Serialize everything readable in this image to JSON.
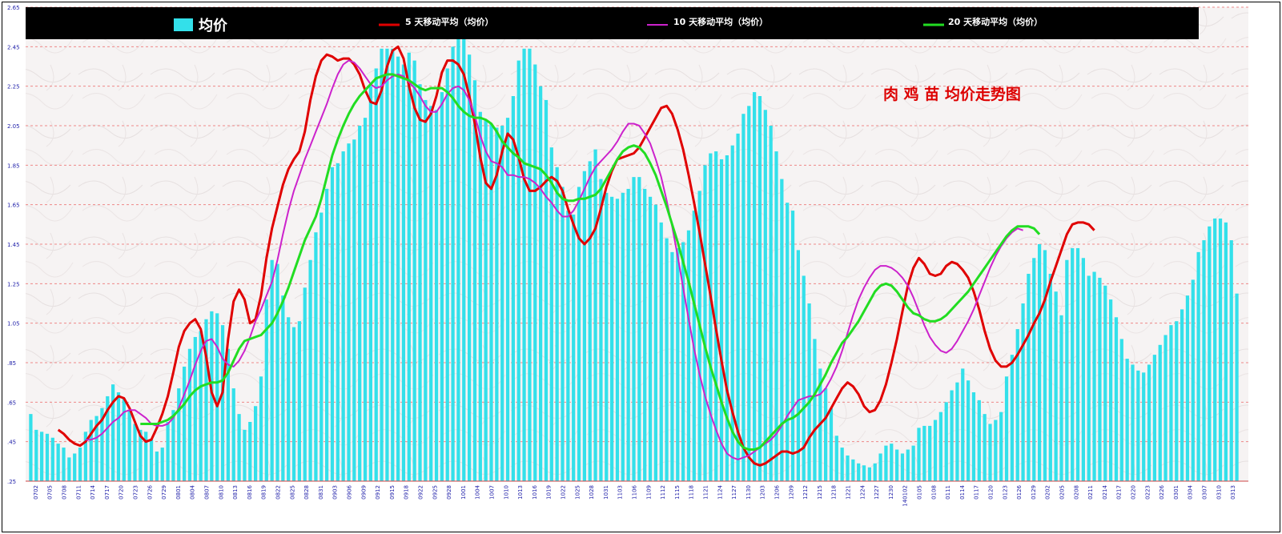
{
  "chart_data": {
    "type": "bar",
    "title": "肉 鸡 苗 均价走势图",
    "legend_placement": "top",
    "grid": true,
    "colors": {
      "bars": "#33e0ea",
      "ma5": "#e00000",
      "ma10": "#cc22cc",
      "ma20": "#22dd22",
      "legend_bg": "#000000",
      "title": "#dd0000",
      "tick_text": "#2222aa",
      "grid": "#ee8888"
    },
    "ylim": [
      0.25,
      2.65
    ],
    "y_ticks": [
      0.25,
      0.45,
      0.65,
      0.85,
      1.05,
      1.25,
      1.45,
      1.65,
      1.85,
      2.05,
      2.25,
      2.45,
      2.65
    ],
    "y_tick_labels": [
      ".25",
      ".45",
      ".65",
      ".85",
      "1.05",
      "1.25",
      "1.45",
      "1.65",
      "1.85",
      "2.05",
      "2.25",
      "2.45",
      "2.65"
    ],
    "x_tick_labels": [
      "0702",
      "0705",
      "0708",
      "0711",
      "0714",
      "0717",
      "0720",
      "0723",
      "0726",
      "0729",
      "0801",
      "0804",
      "0807",
      "0810",
      "0813",
      "0816",
      "0819",
      "0822",
      "0825",
      "0828",
      "0831",
      "0903",
      "0906",
      "0909",
      "0912",
      "0915",
      "0918",
      "0922",
      "0925",
      "0928",
      "1001",
      "1004",
      "1007",
      "1010",
      "1013",
      "1016",
      "1019",
      "1022",
      "1025",
      "1028",
      "1031",
      "1103",
      "1106",
      "1109",
      "1112",
      "1115",
      "1118",
      "1121",
      "1124",
      "1127",
      "1130",
      "1203",
      "1206",
      "1209",
      "1212",
      "1215",
      "1218",
      "1221",
      "1224",
      "1227",
      "1230",
      "140102",
      "0105",
      "0108",
      "0111",
      "0114",
      "0117",
      "0120",
      "0123",
      "0126",
      "0129",
      "0202",
      "0205",
      "0208",
      "0211",
      "0214",
      "0217",
      "0220",
      "0223",
      "0226",
      "0301",
      "0304",
      "0307",
      "0310",
      "0313"
    ],
    "series": [
      {
        "name": "均价",
        "kind": "bar",
        "values": [
          0.59,
          0.51,
          0.5,
          0.49,
          0.47,
          0.44,
          0.42,
          0.37,
          0.39,
          0.42,
          0.5,
          0.56,
          0.58,
          0.62,
          0.68,
          0.74,
          0.7,
          0.67,
          0.61,
          0.54,
          0.51,
          0.5,
          0.46,
          0.4,
          0.42,
          0.55,
          0.61,
          0.72,
          0.83,
          0.92,
          0.98,
          1.01,
          1.07,
          1.11,
          1.1,
          1.04,
          0.92,
          0.72,
          0.59,
          0.51,
          0.55,
          0.63,
          0.78,
          1.17,
          1.37,
          1.35,
          1.19,
          1.08,
          1.03,
          1.06,
          1.23,
          1.37,
          1.51,
          1.61,
          1.73,
          1.84,
          1.86,
          1.92,
          1.96,
          1.98,
          2.05,
          2.09,
          2.25,
          2.34,
          2.44,
          2.44,
          2.44,
          2.4,
          2.36,
          2.42,
          2.38,
          2.26,
          2.18,
          2.15,
          2.13,
          2.22,
          2.34,
          2.45,
          2.53,
          2.49,
          2.41,
          2.28,
          2.12,
          2.08,
          2.06,
          2.04,
          2.05,
          2.09,
          2.2,
          2.38,
          2.44,
          2.44,
          2.36,
          2.25,
          2.18,
          1.94,
          1.84,
          1.74,
          1.62,
          1.6,
          1.74,
          1.82,
          1.87,
          1.93,
          1.78,
          1.71,
          1.69,
          1.68,
          1.71,
          1.73,
          1.79,
          1.79,
          1.73,
          1.69,
          1.65,
          1.56,
          1.48,
          1.41,
          1.43,
          1.46,
          1.52,
          1.62,
          1.72,
          1.85,
          1.91,
          1.92,
          1.88,
          1.9,
          1.95,
          2.01,
          2.11,
          2.15,
          2.22,
          2.2,
          2.13,
          2.05,
          1.92,
          1.78,
          1.66,
          1.62,
          1.42,
          1.29,
          1.15,
          0.97,
          0.82,
          0.72,
          0.62,
          0.48,
          0.42,
          0.38,
          0.36,
          0.34,
          0.33,
          0.32,
          0.34,
          0.39,
          0.43,
          0.44,
          0.41,
          0.39,
          0.41,
          0.43,
          0.52,
          0.53,
          0.53,
          0.56,
          0.6,
          0.65,
          0.71,
          0.75,
          0.82,
          0.76,
          0.7,
          0.66,
          0.59,
          0.54,
          0.56,
          0.6,
          0.78,
          0.89,
          1.02,
          1.15,
          1.3,
          1.38,
          1.45,
          1.42,
          1.3,
          1.21,
          1.09,
          1.37,
          1.43,
          1.43,
          1.38,
          1.29,
          1.31,
          1.28,
          1.24,
          1.17,
          1.08,
          0.97,
          0.87,
          0.84,
          0.81,
          0.8,
          0.84,
          0.89,
          0.94,
          0.99,
          1.04,
          1.06,
          1.12,
          1.19,
          1.27,
          1.41,
          1.47,
          1.54,
          1.58,
          1.58,
          1.56,
          1.47,
          1.2
        ]
      },
      {
        "name": "5 天移动平均（均价）",
        "kind": "line",
        "x_start": 5,
        "values": [
          0.51,
          0.49,
          0.46,
          0.44,
          0.43,
          0.45,
          0.49,
          0.53,
          0.56,
          0.61,
          0.65,
          0.68,
          0.67,
          0.62,
          0.55,
          0.48,
          0.45,
          0.46,
          0.52,
          0.59,
          0.68,
          0.8,
          0.93,
          1.01,
          1.05,
          1.07,
          1.02,
          0.88,
          0.7,
          0.63,
          0.7,
          0.97,
          1.16,
          1.22,
          1.17,
          1.05,
          1.07,
          1.19,
          1.38,
          1.53,
          1.64,
          1.75,
          1.83,
          1.88,
          1.92,
          2.02,
          2.18,
          2.3,
          2.38,
          2.41,
          2.4,
          2.38,
          2.39,
          2.39,
          2.36,
          2.31,
          2.23,
          2.17,
          2.16,
          2.23,
          2.35,
          2.43,
          2.45,
          2.39,
          2.25,
          2.14,
          2.08,
          2.07,
          2.11,
          2.2,
          2.32,
          2.38,
          2.38,
          2.36,
          2.31,
          2.2,
          2.06,
          1.89,
          1.76,
          1.73,
          1.8,
          1.92,
          2.01,
          1.98,
          1.89,
          1.78,
          1.72,
          1.72,
          1.74,
          1.77,
          1.79,
          1.77,
          1.72,
          1.63,
          1.55,
          1.48,
          1.45,
          1.48,
          1.53,
          1.63,
          1.74,
          1.82,
          1.88,
          1.89,
          1.9,
          1.91,
          1.94,
          1.99,
          2.04,
          2.09,
          2.14,
          2.15,
          2.11,
          2.03,
          1.93,
          1.8,
          1.66,
          1.51,
          1.35,
          1.19,
          1.02,
          0.86,
          0.71,
          0.6,
          0.5,
          0.42,
          0.37,
          0.34,
          0.33,
          0.34,
          0.36,
          0.38,
          0.4,
          0.4,
          0.39,
          0.4,
          0.42,
          0.47,
          0.51,
          0.54,
          0.57,
          0.62,
          0.67,
          0.72,
          0.75,
          0.73,
          0.69,
          0.63,
          0.6,
          0.61,
          0.66,
          0.74,
          0.85,
          0.97,
          1.11,
          1.24,
          1.33,
          1.38,
          1.35,
          1.3,
          1.29,
          1.3,
          1.34,
          1.36,
          1.35,
          1.32,
          1.28,
          1.21,
          1.12,
          1.01,
          0.92,
          0.86,
          0.83,
          0.83,
          0.85,
          0.89,
          0.94,
          0.99,
          1.05,
          1.1,
          1.17,
          1.26,
          1.34,
          1.42,
          1.5,
          1.55,
          1.56,
          1.56,
          1.55,
          1.52
        ]
      },
      {
        "name": "10 天移动平均（均价）",
        "kind": "line",
        "x_start": 10,
        "values": [
          0.46,
          0.46,
          0.47,
          0.49,
          0.52,
          0.55,
          0.57,
          0.6,
          0.61,
          0.61,
          0.59,
          0.57,
          0.54,
          0.53,
          0.53,
          0.54,
          0.57,
          0.62,
          0.69,
          0.76,
          0.84,
          0.91,
          0.96,
          0.97,
          0.93,
          0.87,
          0.84,
          0.83,
          0.86,
          0.91,
          0.98,
          1.06,
          1.12,
          1.19,
          1.26,
          1.37,
          1.5,
          1.62,
          1.72,
          1.8,
          1.88,
          1.95,
          2.02,
          2.09,
          2.16,
          2.24,
          2.31,
          2.36,
          2.38,
          2.37,
          2.34,
          2.3,
          2.26,
          2.24,
          2.25,
          2.28,
          2.3,
          2.31,
          2.3,
          2.27,
          2.24,
          2.2,
          2.15,
          2.12,
          2.12,
          2.16,
          2.21,
          2.24,
          2.25,
          2.23,
          2.18,
          2.1,
          2.0,
          1.92,
          1.87,
          1.86,
          1.84,
          1.8,
          1.8,
          1.79,
          1.79,
          1.78,
          1.76,
          1.73,
          1.69,
          1.66,
          1.62,
          1.59,
          1.59,
          1.62,
          1.67,
          1.73,
          1.79,
          1.84,
          1.87,
          1.9,
          1.93,
          1.97,
          2.02,
          2.06,
          2.06,
          2.05,
          2.01,
          1.96,
          1.88,
          1.79,
          1.67,
          1.54,
          1.39,
          1.23,
          1.07,
          0.92,
          0.79,
          0.68,
          0.59,
          0.51,
          0.44,
          0.39,
          0.37,
          0.36,
          0.37,
          0.38,
          0.4,
          0.42,
          0.44,
          0.46,
          0.49,
          0.53,
          0.58,
          0.62,
          0.66,
          0.67,
          0.68,
          0.68,
          0.69,
          0.72,
          0.77,
          0.83,
          0.91,
          1.0,
          1.09,
          1.17,
          1.23,
          1.28,
          1.32,
          1.34,
          1.34,
          1.33,
          1.31,
          1.28,
          1.24,
          1.18,
          1.11,
          1.04,
          0.98,
          0.94,
          0.91,
          0.9,
          0.92,
          0.96,
          1.01,
          1.06,
          1.12,
          1.19,
          1.26,
          1.33,
          1.39,
          1.44,
          1.48,
          1.51,
          1.53,
          1.52
        ]
      },
      {
        "name": "20 天移动平均（均价）",
        "kind": "line",
        "x_start": 20,
        "values": [
          0.54,
          0.54,
          0.54,
          0.54,
          0.55,
          0.56,
          0.58,
          0.61,
          0.64,
          0.68,
          0.71,
          0.73,
          0.74,
          0.75,
          0.75,
          0.76,
          0.8,
          0.86,
          0.92,
          0.96,
          0.97,
          0.98,
          0.99,
          1.02,
          1.05,
          1.1,
          1.16,
          1.23,
          1.31,
          1.39,
          1.47,
          1.53,
          1.59,
          1.68,
          1.79,
          1.9,
          1.98,
          2.05,
          2.11,
          2.16,
          2.2,
          2.23,
          2.26,
          2.29,
          2.3,
          2.31,
          2.31,
          2.3,
          2.29,
          2.28,
          2.26,
          2.24,
          2.23,
          2.24,
          2.24,
          2.24,
          2.22,
          2.19,
          2.15,
          2.12,
          2.1,
          2.09,
          2.09,
          2.08,
          2.06,
          2.02,
          1.97,
          1.94,
          1.91,
          1.89,
          1.86,
          1.85,
          1.84,
          1.83,
          1.8,
          1.76,
          1.71,
          1.68,
          1.67,
          1.67,
          1.68,
          1.68,
          1.69,
          1.7,
          1.73,
          1.78,
          1.83,
          1.88,
          1.92,
          1.94,
          1.95,
          1.94,
          1.91,
          1.86,
          1.8,
          1.72,
          1.64,
          1.55,
          1.46,
          1.36,
          1.26,
          1.15,
          1.04,
          0.93,
          0.83,
          0.74,
          0.65,
          0.57,
          0.5,
          0.45,
          0.42,
          0.41,
          0.41,
          0.42,
          0.45,
          0.48,
          0.51,
          0.54,
          0.56,
          0.57,
          0.59,
          0.62,
          0.65,
          0.69,
          0.74,
          0.79,
          0.85,
          0.9,
          0.95,
          0.98,
          1.02,
          1.06,
          1.11,
          1.16,
          1.21,
          1.24,
          1.25,
          1.24,
          1.21,
          1.17,
          1.13,
          1.1,
          1.09,
          1.07,
          1.06,
          1.06,
          1.07,
          1.09,
          1.12,
          1.15,
          1.18,
          1.21,
          1.25,
          1.29,
          1.33,
          1.37,
          1.41,
          1.45,
          1.49,
          1.52,
          1.54,
          1.54,
          1.54,
          1.53,
          1.5
        ]
      }
    ]
  }
}
